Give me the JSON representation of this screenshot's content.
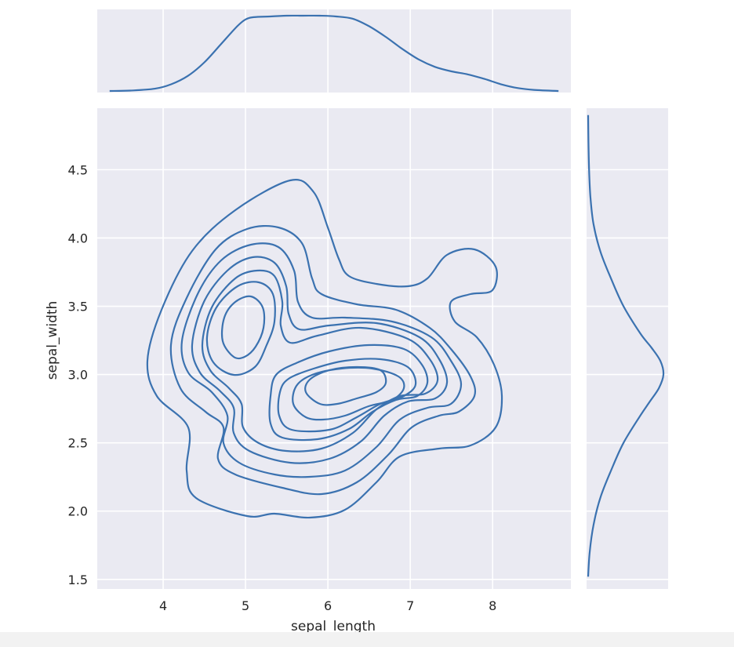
{
  "chart_data": {
    "type": "joint-kde",
    "xlabel": "sepal_length",
    "ylabel": "sepal_width",
    "xlim": [
      3.2,
      8.95
    ],
    "ylim": [
      1.43,
      4.95
    ],
    "x_ticks": [
      "4",
      "5",
      "6",
      "7",
      "8"
    ],
    "y_ticks": [
      "1.5",
      "2.0",
      "2.5",
      "3.0",
      "3.5",
      "4.0",
      "4.5"
    ],
    "grid": true,
    "line_color": "#3b72b0",
    "background_color": "#eaeaf2",
    "modes": [
      {
        "x": 5.05,
        "y": 3.4
      },
      {
        "x": 6.2,
        "y": 2.95
      }
    ],
    "contour_levels": 9,
    "marginal_x": {
      "x": [
        3.35,
        3.6,
        3.9,
        4.1,
        4.3,
        4.5,
        4.7,
        4.9,
        5.0,
        5.1,
        5.3,
        5.5,
        5.7,
        5.9,
        6.1,
        6.3,
        6.5,
        6.7,
        6.9,
        7.1,
        7.3,
        7.5,
        7.7,
        7.9,
        8.1,
        8.3,
        8.5,
        8.8
      ],
      "density": [
        0.0,
        0.005,
        0.03,
        0.09,
        0.2,
        0.38,
        0.62,
        0.86,
        0.95,
        0.98,
        0.99,
        1.0,
        1.0,
        1.0,
        0.99,
        0.96,
        0.86,
        0.72,
        0.56,
        0.42,
        0.32,
        0.26,
        0.22,
        0.16,
        0.09,
        0.04,
        0.015,
        0.0
      ]
    },
    "marginal_y": {
      "y": [
        1.52,
        1.7,
        1.9,
        2.1,
        2.3,
        2.5,
        2.7,
        2.8,
        2.9,
        3.0,
        3.1,
        3.2,
        3.3,
        3.5,
        3.7,
        3.9,
        4.1,
        4.3,
        4.5,
        4.7,
        4.9
      ],
      "density": [
        0.0,
        0.02,
        0.07,
        0.16,
        0.3,
        0.46,
        0.68,
        0.8,
        0.92,
        0.98,
        0.94,
        0.82,
        0.68,
        0.46,
        0.3,
        0.16,
        0.07,
        0.03,
        0.012,
        0.004,
        0.0
      ]
    }
  }
}
